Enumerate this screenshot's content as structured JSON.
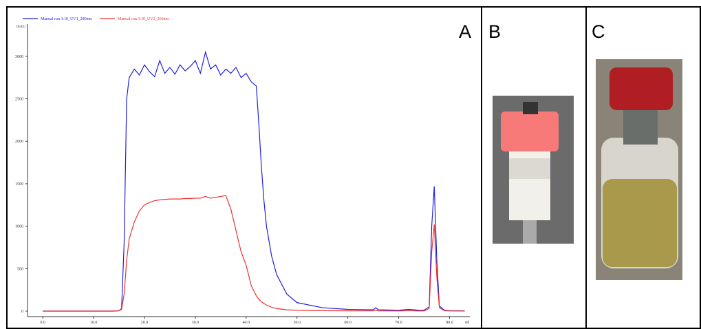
{
  "panel_labels": [
    "A",
    "B",
    "C"
  ],
  "chart_data": {
    "type": "line",
    "ylabel": "mAU",
    "xlabel": "ml",
    "x": [
      0,
      5,
      10,
      14,
      15,
      15.5,
      16,
      16.5,
      17,
      18,
      19,
      20,
      21,
      22,
      23,
      24,
      25,
      26,
      27,
      28,
      29,
      30,
      31,
      32,
      33,
      34,
      35,
      36,
      37,
      38,
      39,
      40,
      41,
      42,
      42.5,
      43,
      43.5,
      44,
      45,
      46,
      48,
      50,
      55,
      60,
      65,
      65.5,
      66,
      70,
      72,
      74,
      75,
      76,
      76.5,
      77,
      77.5,
      78,
      79,
      80,
      83
    ],
    "series": [
      {
        "name": "Manual run 3:10_UV1_280nm",
        "color": "#1f1fe0",
        "values": [
          0,
          0,
          0,
          0,
          5,
          30,
          800,
          2500,
          2750,
          2850,
          2780,
          2900,
          2820,
          2760,
          2950,
          2800,
          2870,
          2790,
          2900,
          2830,
          2880,
          2950,
          2800,
          3050,
          2850,
          2900,
          2780,
          2850,
          2800,
          2870,
          2750,
          2800,
          2700,
          2650,
          2200,
          1700,
          1300,
          1000,
          650,
          430,
          200,
          100,
          40,
          20,
          15,
          40,
          15,
          10,
          20,
          10,
          10,
          50,
          1000,
          1470,
          600,
          60,
          10,
          5,
          3
        ]
      },
      {
        "name": "Manual run 3:10_UV2_360nm",
        "color": "#f03030",
        "values": [
          0,
          0,
          0,
          0,
          5,
          20,
          200,
          600,
          850,
          1050,
          1180,
          1250,
          1280,
          1300,
          1310,
          1315,
          1320,
          1320,
          1320,
          1325,
          1325,
          1330,
          1330,
          1350,
          1330,
          1340,
          1350,
          1360,
          1200,
          950,
          700,
          540,
          300,
          180,
          140,
          110,
          90,
          70,
          45,
          30,
          15,
          10,
          5,
          3,
          3,
          10,
          3,
          2,
          5,
          2,
          2,
          30,
          700,
          1020,
          400,
          40,
          5,
          2,
          1
        ]
      }
    ],
    "xlim": [
      -3,
      84
    ],
    "ylim": [
      -65,
      3380
    ],
    "xticks": [
      {
        "value": 0,
        "label": "0.0"
      },
      {
        "value": 10,
        "label": "10.0"
      },
      {
        "value": 20,
        "label": "20.0"
      },
      {
        "value": 30,
        "label": "30.0"
      },
      {
        "value": 40,
        "label": "40.0"
      },
      {
        "value": 50,
        "label": "50.0"
      },
      {
        "value": 60,
        "label": "60.0"
      },
      {
        "value": 70,
        "label": "70.0"
      },
      {
        "value": 80,
        "label": "80.0"
      }
    ],
    "yticks": [
      0,
      500,
      1000,
      1500,
      2000,
      2500,
      3000
    ],
    "grid": false
  }
}
